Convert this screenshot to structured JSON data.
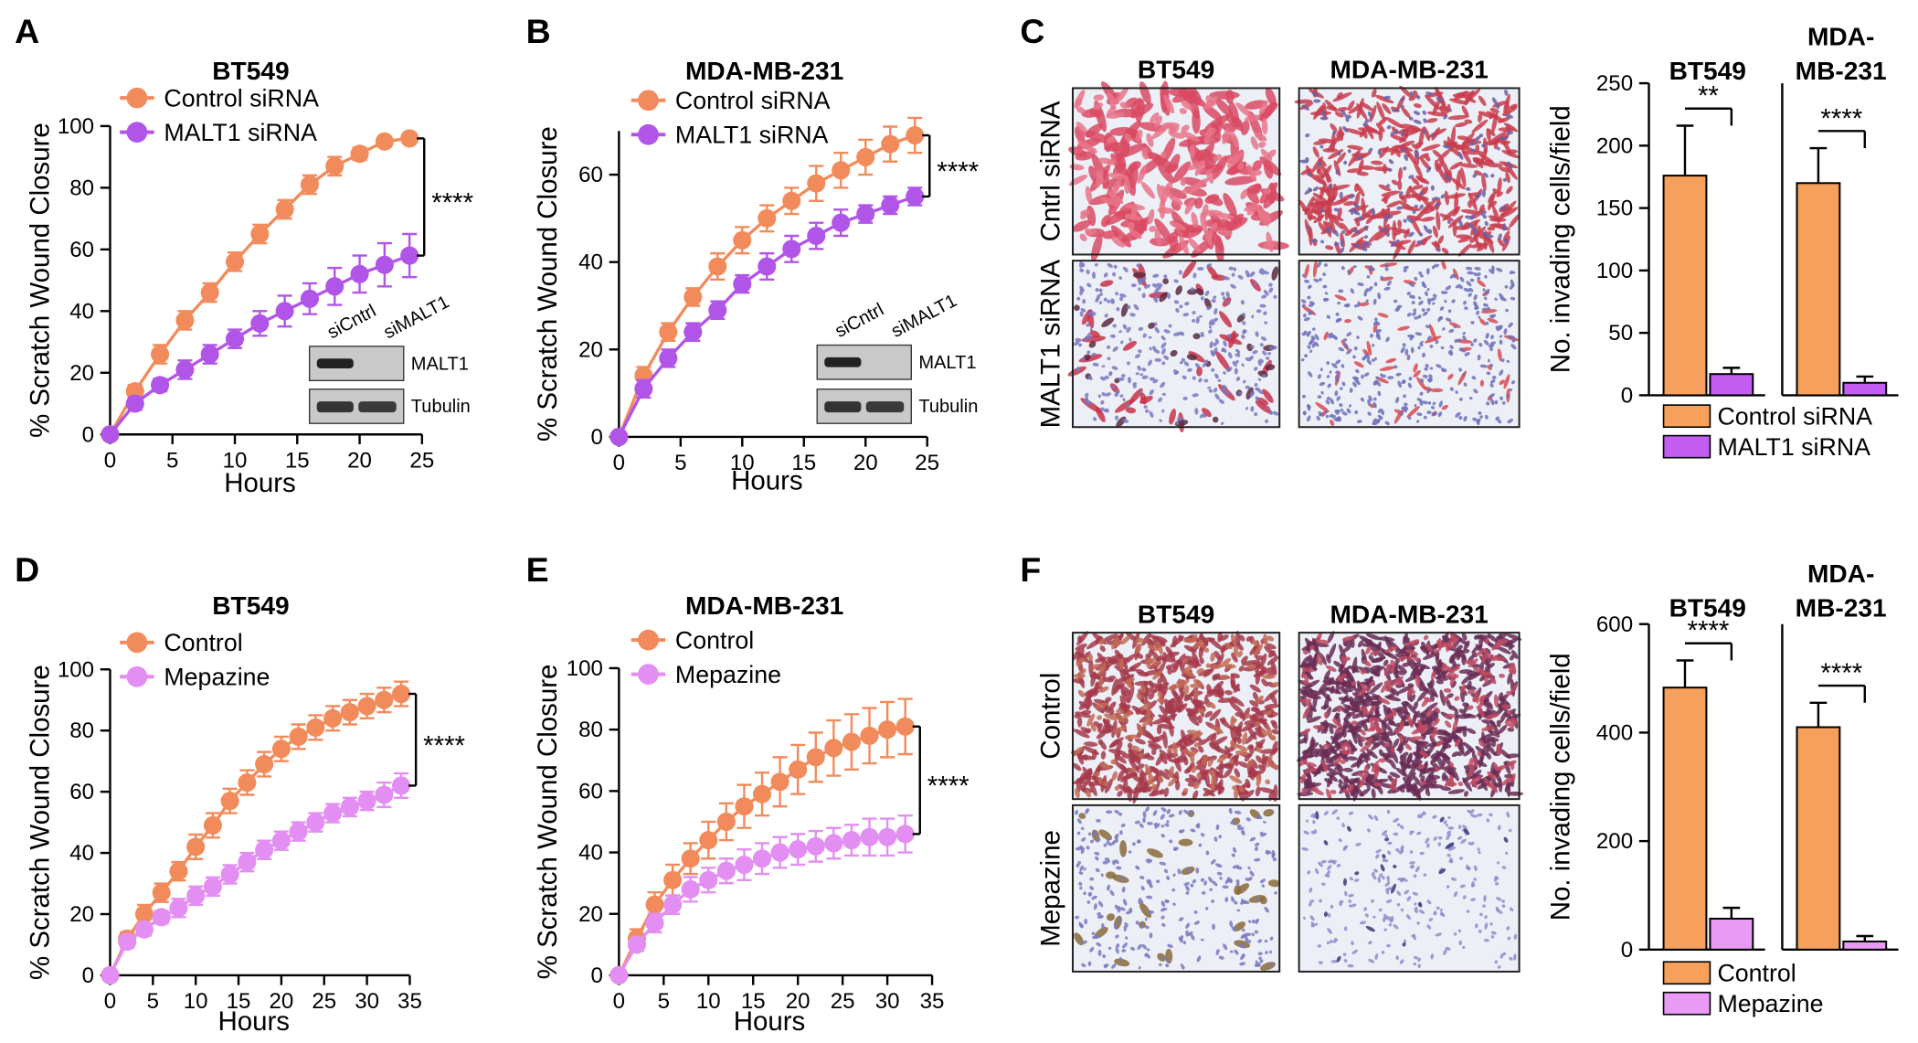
{
  "chart_data": [
    {
      "type": "line",
      "label": "A",
      "title": "BT549",
      "xlabel": "Hours",
      "ylabel": "% Scratch Wound Closure",
      "x": [
        0,
        2,
        4,
        6,
        8,
        10,
        12,
        14,
        16,
        18,
        20,
        22,
        24
      ],
      "series": [
        {
          "name": "Control siRNA",
          "color": "#f28b5b",
          "values": [
            0,
            14,
            26,
            37,
            46,
            56,
            65,
            73,
            81,
            87,
            91,
            95,
            96
          ],
          "errors": [
            0,
            2,
            3,
            3,
            3,
            3,
            3,
            3,
            3,
            3,
            2,
            1,
            1
          ]
        },
        {
          "name": "MALT1 siRNA",
          "color": "#b055e8",
          "values": [
            0,
            10,
            16,
            21,
            26,
            31,
            36,
            40,
            44,
            48,
            52,
            55,
            58
          ],
          "errors": [
            0,
            2,
            2,
            3,
            3,
            3,
            4,
            5,
            5,
            6,
            6,
            7,
            7
          ]
        }
      ],
      "xlim": [
        0,
        25
      ],
      "xticks": [
        0,
        5,
        10,
        15,
        20,
        25
      ],
      "ylim": [
        0,
        100
      ],
      "yticks": [
        0,
        20,
        40,
        60,
        80,
        100
      ],
      "annotation": "****",
      "inset": {
        "lanes": [
          "siCntrl",
          "siMALT1"
        ],
        "bands": [
          "MALT1",
          "Tubulin"
        ]
      }
    },
    {
      "type": "line",
      "label": "B",
      "title": "MDA-MB-231",
      "xlabel": "Hours",
      "ylabel": "% Scratch Wound Closure",
      "x": [
        0,
        2,
        4,
        6,
        8,
        10,
        12,
        14,
        16,
        18,
        20,
        22,
        24
      ],
      "series": [
        {
          "name": "Control siRNA",
          "color": "#f28b5b",
          "values": [
            0,
            14,
            24,
            32,
            39,
            45,
            50,
            54,
            58,
            61,
            64,
            67,
            69
          ],
          "errors": [
            0,
            2,
            2,
            2,
            3,
            3,
            3,
            3,
            4,
            4,
            4,
            4,
            4
          ]
        },
        {
          "name": "MALT1 siRNA",
          "color": "#b055e8",
          "values": [
            0,
            11,
            18,
            24,
            29,
            35,
            39,
            43,
            46,
            49,
            51,
            53,
            55
          ],
          "errors": [
            0,
            2,
            2,
            2,
            2,
            2,
            3,
            3,
            3,
            3,
            2,
            2,
            2
          ]
        }
      ],
      "xlim": [
        0,
        25
      ],
      "xticks": [
        0,
        5,
        10,
        15,
        20,
        25
      ],
      "ylim": [
        0,
        70
      ],
      "yticks": [
        0,
        20,
        40,
        60
      ],
      "annotation": "****",
      "inset": {
        "lanes": [
          "siCntrl",
          "siMALT1"
        ],
        "bands": [
          "MALT1",
          "Tubulin"
        ]
      }
    },
    {
      "type": "bar",
      "title": null,
      "ylabel": "No. invading cells/field",
      "categories": [
        "BT549",
        "MDA-MB-231"
      ],
      "series": [
        {
          "name": "Control siRNA",
          "color": "#f7a05b",
          "values": [
            176,
            170
          ],
          "errors": [
            40,
            28
          ]
        },
        {
          "name": "MALT1 siRNA",
          "color": "#c35cf0",
          "values": [
            17,
            10
          ],
          "errors": [
            5,
            5
          ]
        }
      ],
      "ylim": [
        0,
        250
      ],
      "yticks": [
        0,
        50,
        100,
        150,
        200,
        250
      ],
      "annotations": [
        "**",
        "****"
      ]
    },
    {
      "type": "line",
      "label": "D",
      "title": "BT549",
      "xlabel": "Hours",
      "ylabel": "% Scratch Wound Closure",
      "x": [
        0,
        2,
        4,
        6,
        8,
        10,
        12,
        14,
        16,
        18,
        20,
        22,
        24,
        26,
        28,
        30,
        32,
        34
      ],
      "series": [
        {
          "name": "Control",
          "color": "#f28b5b",
          "values": [
            0,
            12,
            20,
            27,
            34,
            42,
            49,
            57,
            63,
            69,
            74,
            78,
            81,
            84,
            86,
            88,
            90,
            92
          ],
          "errors": [
            0,
            2,
            3,
            3,
            3,
            4,
            4,
            4,
            4,
            4,
            4,
            4,
            4,
            4,
            4,
            4,
            4,
            4
          ]
        },
        {
          "name": "Mepazine",
          "color": "#e28ef2",
          "values": [
            0,
            11,
            15,
            19,
            22,
            26,
            29,
            33,
            37,
            41,
            44,
            47,
            50,
            53,
            55,
            57,
            59,
            62
          ],
          "errors": [
            0,
            2,
            2,
            2,
            3,
            3,
            3,
            3,
            3,
            3,
            3,
            3,
            3,
            3,
            3,
            3,
            4,
            4
          ]
        }
      ],
      "xlim": [
        0,
        35
      ],
      "xticks": [
        0,
        5,
        10,
        15,
        20,
        25,
        30,
        35
      ],
      "ylim": [
        0,
        100
      ],
      "yticks": [
        0,
        20,
        40,
        60,
        80,
        100
      ],
      "annotation": "****"
    },
    {
      "type": "line",
      "label": "E",
      "title": "MDA-MB-231",
      "xlabel": "Hours",
      "ylabel": "% Scratch Wound Closure",
      "x": [
        0,
        2,
        4,
        6,
        8,
        10,
        12,
        14,
        16,
        18,
        20,
        22,
        24,
        26,
        28,
        30,
        32
      ],
      "series": [
        {
          "name": "Control",
          "color": "#f28b5b",
          "values": [
            0,
            12,
            23,
            31,
            38,
            44,
            50,
            55,
            59,
            63,
            67,
            71,
            74,
            76,
            78,
            80,
            81
          ],
          "errors": [
            0,
            3,
            4,
            5,
            5,
            6,
            6,
            7,
            7,
            8,
            8,
            8,
            9,
            9,
            9,
            9,
            9
          ]
        },
        {
          "name": "Mepazine",
          "color": "#e28ef2",
          "values": [
            0,
            10,
            17,
            23,
            28,
            31,
            34,
            36,
            38,
            40,
            41,
            42,
            43,
            44,
            45,
            45,
            46
          ],
          "errors": [
            0,
            2,
            3,
            3,
            4,
            4,
            4,
            5,
            5,
            5,
            5,
            5,
            5,
            5,
            6,
            6,
            6
          ]
        }
      ],
      "xlim": [
        0,
        35
      ],
      "xticks": [
        0,
        5,
        10,
        15,
        20,
        25,
        30,
        35
      ],
      "ylim": [
        0,
        100
      ],
      "yticks": [
        0,
        20,
        40,
        60,
        80,
        100
      ],
      "annotation": "****"
    },
    {
      "type": "bar",
      "title": null,
      "ylabel": "No. invading cells/field",
      "categories": [
        "BT549",
        "MDA-MB-231"
      ],
      "series": [
        {
          "name": "Control",
          "color": "#f7a05b",
          "values": [
            483,
            410
          ],
          "errors": [
            50,
            45
          ]
        },
        {
          "name": "Mepazine",
          "color": "#e89af5",
          "values": [
            57,
            15
          ],
          "errors": [
            20,
            10
          ]
        }
      ],
      "ylim": [
        0,
        600
      ],
      "yticks": [
        0,
        200,
        400,
        600
      ],
      "annotations": [
        "****",
        "****"
      ]
    }
  ],
  "micrographs": [
    {
      "label": "C",
      "columns": [
        "BT549",
        "MDA-MB-231"
      ],
      "rows": [
        "Cntrl siRNA",
        "MALT1 siRNA"
      ]
    },
    {
      "label": "F",
      "columns": [
        "BT549",
        "MDA-MB-231"
      ],
      "rows": [
        "Control",
        "Mepazine"
      ]
    }
  ]
}
